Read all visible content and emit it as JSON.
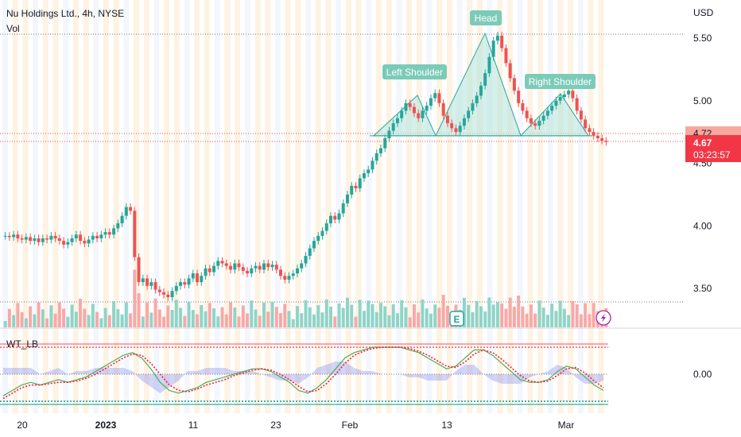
{
  "header": {
    "title": "Nu Holdings Ltd., 4h, NYSE",
    "volume_label": "Vol",
    "indicator_label": "WT_LB"
  },
  "price_axis": {
    "currency": "USD",
    "ticks": [
      "5.50",
      "5.00",
      "4.50",
      "4.00",
      "3.50"
    ],
    "last_price": "4.67",
    "countdown": "03:23:57",
    "neckline_tag": "4.72"
  },
  "indicator_axis": {
    "ticks": [
      "0.00"
    ]
  },
  "time_axis": {
    "labels": [
      "20",
      "2023",
      "11",
      "23",
      "Feb",
      "13",
      "Mar"
    ]
  },
  "annotations": {
    "left_shoulder": "Left Shoulder",
    "head": "Head",
    "right_shoulder": "Right Shoulder"
  },
  "earnings_marker": "E",
  "colors": {
    "up": "#26a69a",
    "down": "#ef5350",
    "pattern_fill": "#b9e4dc",
    "label_bg": "#7ccbb9",
    "band": "#fde7cc"
  },
  "chart_data": {
    "type": "candlestick",
    "title": "Nu Holdings Ltd., 4h, NYSE",
    "currency": "USD",
    "x_labels": [
      "20",
      "2023",
      "11",
      "23",
      "Feb",
      "13",
      "Mar"
    ],
    "close_series": [
      3.92,
      3.91,
      3.93,
      3.9,
      3.89,
      3.91,
      3.88,
      3.9,
      3.87,
      3.9,
      3.89,
      3.92,
      3.9,
      3.88,
      3.85,
      3.87,
      3.9,
      3.93,
      3.88,
      3.86,
      3.89,
      3.92,
      3.9,
      3.93,
      3.95,
      3.93,
      3.98,
      4.02,
      4.08,
      4.15,
      4.12,
      3.75,
      3.55,
      3.58,
      3.52,
      3.55,
      3.49,
      3.47,
      3.45,
      3.43,
      3.48,
      3.52,
      3.55,
      3.53,
      3.58,
      3.62,
      3.55,
      3.6,
      3.66,
      3.63,
      3.68,
      3.72,
      3.7,
      3.68,
      3.65,
      3.7,
      3.67,
      3.64,
      3.62,
      3.66,
      3.68,
      3.65,
      3.7,
      3.67,
      3.69,
      3.65,
      3.6,
      3.57,
      3.6,
      3.62,
      3.66,
      3.7,
      3.76,
      3.82,
      3.88,
      3.92,
      3.96,
      4.02,
      4.08,
      4.05,
      4.1,
      4.18,
      4.25,
      4.32,
      4.3,
      4.38,
      4.42,
      4.45,
      4.52,
      4.58,
      4.62,
      4.7,
      4.76,
      4.82,
      4.86,
      4.92,
      4.98,
      4.95,
      4.9,
      4.86,
      4.92,
      4.96,
      5.02,
      5.06,
      4.98,
      4.88,
      4.82,
      4.78,
      4.75,
      4.8,
      4.86,
      4.92,
      4.98,
      5.04,
      5.12,
      5.22,
      5.35,
      5.48,
      5.52,
      5.42,
      5.3,
      5.18,
      5.08,
      4.98,
      4.92,
      4.86,
      4.82,
      4.8,
      4.84,
      4.88,
      4.92,
      4.96,
      5.0,
      5.03,
      5.05,
      5.08,
      5.02,
      4.92,
      4.85,
      4.78,
      4.75,
      4.72,
      4.7,
      4.68,
      4.67
    ],
    "neckline": 4.72,
    "pattern": [
      "Left Shoulder",
      "Head",
      "Right Shoulder"
    ],
    "last_price": 4.67,
    "ylim": [
      3.3,
      5.7
    ],
    "indicator": {
      "name": "WT_LB",
      "zero_line": 0.0,
      "wt1": [
        -0.8,
        -0.6,
        -0.4,
        -0.3,
        -0.4,
        -0.3,
        -0.2,
        -0.3,
        -0.2,
        -0.1,
        0.1,
        0.3,
        0.5,
        0.7,
        0.8,
        0.6,
        0.2,
        -0.3,
        -0.6,
        -0.7,
        -0.6,
        -0.5,
        -0.3,
        -0.2,
        -0.1,
        0.0,
        0.1,
        0.2,
        0.2,
        0.1,
        -0.1,
        -0.3,
        -0.6,
        -0.7,
        -0.5,
        -0.2,
        0.2,
        0.6,
        0.8,
        0.9,
        1.0,
        1.0,
        1.0,
        1.0,
        0.9,
        0.8,
        0.6,
        0.4,
        0.2,
        0.3,
        0.6,
        0.9,
        0.9,
        0.7,
        0.4,
        0.1,
        -0.2,
        -0.3,
        -0.3,
        -0.2,
        0.1,
        0.3,
        0.2,
        -0.1,
        -0.4,
        -0.6
      ],
      "wt2": [
        -0.9,
        -0.7,
        -0.5,
        -0.4,
        -0.4,
        -0.35,
        -0.3,
        -0.3,
        -0.25,
        -0.15,
        0.0,
        0.2,
        0.4,
        0.6,
        0.75,
        0.7,
        0.4,
        0.0,
        -0.4,
        -0.6,
        -0.65,
        -0.55,
        -0.4,
        -0.3,
        -0.2,
        -0.05,
        0.05,
        0.15,
        0.2,
        0.15,
        0.0,
        -0.2,
        -0.45,
        -0.65,
        -0.6,
        -0.35,
        0.0,
        0.4,
        0.7,
        0.85,
        0.95,
        1.0,
        1.0,
        1.0,
        0.95,
        0.85,
        0.7,
        0.5,
        0.3,
        0.25,
        0.45,
        0.75,
        0.9,
        0.8,
        0.55,
        0.25,
        -0.05,
        -0.25,
        -0.3,
        -0.25,
        -0.05,
        0.2,
        0.25,
        0.05,
        -0.25,
        -0.5
      ]
    }
  }
}
